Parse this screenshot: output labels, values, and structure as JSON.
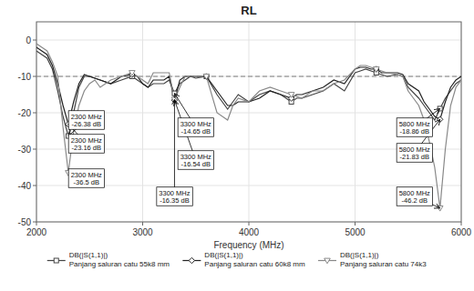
{
  "chart_data": {
    "type": "line",
    "title": "RL",
    "x_label": "Frequency (MHz)",
    "xlim": [
      2000,
      6000
    ],
    "ylim": [
      -50,
      5
    ],
    "xticks": [
      2000,
      3000,
      4000,
      5000,
      6000
    ],
    "yticks": [
      0,
      -10,
      -20,
      -30,
      -40,
      -50
    ],
    "grid": true,
    "legend": "bottom",
    "series": [
      {
        "name": "DB(|S(1,1)|)\nPanjang saluran catu 55k8 mm",
        "color": "#444444",
        "marker": "square",
        "x": [
          2000,
          2050,
          2100,
          2150,
          2200,
          2250,
          2300,
          2350,
          2400,
          2450,
          2500,
          2600,
          2700,
          2800,
          2900,
          2950,
          3000,
          3050,
          3100,
          3200,
          3250,
          3300,
          3350,
          3400,
          3450,
          3500,
          3600,
          3700,
          3800,
          3850,
          3900,
          4000,
          4100,
          4200,
          4300,
          4400,
          4450,
          4500,
          4600,
          4700,
          4800,
          4900,
          5000,
          5050,
          5100,
          5150,
          5200,
          5250,
          5300,
          5400,
          5450,
          5500,
          5600,
          5650,
          5700,
          5750,
          5800,
          5850,
          5900,
          5950,
          6000
        ],
        "values": [
          -3,
          -4,
          -5,
          -8,
          -14,
          -21,
          -26.38,
          -20,
          -13,
          -10,
          -10,
          -11,
          -12,
          -11,
          -10,
          -11,
          -12,
          -13,
          -12,
          -12,
          -11,
          -14.65,
          -12,
          -11,
          -10,
          -10.5,
          -10,
          -15,
          -19,
          -17,
          -15,
          -17,
          -15,
          -14,
          -15,
          -17,
          -16,
          -16,
          -15,
          -14,
          -12,
          -14,
          -9,
          -8.5,
          -8,
          -8.5,
          -9,
          -9.5,
          -10,
          -9.5,
          -10,
          -13,
          -16,
          -18,
          -20,
          -22,
          -18.86,
          -16,
          -14,
          -12,
          -11
        ],
        "marker_x": [
          2300,
          2900,
          3300,
          3600,
          4400,
          5200,
          5800
        ],
        "marker_values": [
          -26.38,
          -10,
          -14.65,
          -10,
          -17,
          -9,
          -18.86
        ]
      },
      {
        "name": "DB(|S(1,1)|)\nPanjang saluran catu 60k8 mm",
        "color": "#222222",
        "marker": "diamond",
        "x": [
          2000,
          2050,
          2100,
          2150,
          2200,
          2250,
          2300,
          2350,
          2400,
          2450,
          2500,
          2600,
          2700,
          2800,
          2900,
          2950,
          3000,
          3050,
          3100,
          3200,
          3250,
          3300,
          3350,
          3400,
          3450,
          3500,
          3600,
          3700,
          3800,
          3850,
          3900,
          4000,
          4100,
          4200,
          4300,
          4400,
          4450,
          4500,
          4600,
          4700,
          4800,
          4900,
          5000,
          5050,
          5100,
          5150,
          5200,
          5250,
          5300,
          5400,
          5450,
          5500,
          5600,
          5650,
          5700,
          5750,
          5800,
          5850,
          5900,
          5950,
          6000
        ],
        "values": [
          -2,
          -3,
          -4,
          -7,
          -12,
          -18,
          -23.16,
          -17,
          -12,
          -9.5,
          -10,
          -11,
          -12,
          -10,
          -9.5,
          -10,
          -12,
          -13,
          -11,
          -11,
          -10,
          -16.54,
          -11,
          -10,
          -10,
          -10,
          -10,
          -14,
          -18,
          -18,
          -17,
          -17,
          -16,
          -14,
          -15,
          -16,
          -15,
          -15,
          -14,
          -13,
          -11,
          -12,
          -8,
          -7.5,
          -7.5,
          -8,
          -8,
          -9,
          -9,
          -9,
          -9.5,
          -12,
          -14,
          -17,
          -19,
          -21,
          -21.83,
          -17,
          -13,
          -11,
          -10
        ],
        "marker_x": [
          2300,
          2900,
          3300,
          3600,
          4400,
          5200,
          5800
        ],
        "marker_values": [
          -23.16,
          -9.5,
          -16.54,
          -10,
          -16,
          -8,
          -21.83
        ]
      },
      {
        "name": "DB(|S(1,1)|)\nPanjang saluran catu 74k3",
        "color": "#888888",
        "marker": "triangle-down",
        "x": [
          2000,
          2050,
          2100,
          2150,
          2200,
          2250,
          2300,
          2350,
          2400,
          2450,
          2500,
          2550,
          2600,
          2700,
          2800,
          2900,
          2950,
          3000,
          3050,
          3100,
          3200,
          3250,
          3300,
          3350,
          3400,
          3450,
          3500,
          3600,
          3700,
          3800,
          3850,
          3900,
          4000,
          4100,
          4200,
          4300,
          4400,
          4500,
          4600,
          4700,
          4800,
          4900,
          5000,
          5050,
          5100,
          5150,
          5200,
          5250,
          5300,
          5400,
          5450,
          5500,
          5550,
          5600,
          5650,
          5700,
          5750,
          5800,
          5850,
          5900,
          5950,
          6000
        ],
        "values": [
          -1,
          -2,
          -3,
          -6,
          -10,
          -24,
          -36.5,
          -25,
          -18,
          -14,
          -12,
          -11,
          -13,
          -11,
          -10,
          -9,
          -10,
          -11,
          -12,
          -9,
          -9,
          -9,
          -16.35,
          -13,
          -10,
          -10,
          -10,
          -10,
          -20,
          -22,
          -18,
          -16,
          -17,
          -14,
          -13,
          -14,
          -15,
          -16,
          -14,
          -14,
          -12,
          -11,
          -8,
          -7,
          -7,
          -7.5,
          -8,
          -8.5,
          -9,
          -9.5,
          -10,
          -14,
          -16,
          -18,
          -22,
          -28,
          -35,
          -46.2,
          -30,
          -18,
          -13,
          -11
        ],
        "marker_x": [
          2300,
          2900,
          3300,
          3600,
          4400,
          5200,
          5800
        ],
        "marker_values": [
          -36.5,
          -9,
          -16.35,
          -10,
          -15,
          -8,
          -46.2
        ]
      }
    ],
    "reference_lines": [
      {
        "y": -10,
        "color": "gray",
        "line_style": "dashed"
      }
    ],
    "annotations": [
      {
        "x": 2300,
        "y": -26.38,
        "text": "2300 MHz\n-26.38 dB",
        "text_x": 2470,
        "text_y": -22
      },
      {
        "x": 2300,
        "y": -23.16,
        "text": "2300 MHz\n-23.16 dB",
        "text_x": 2470,
        "text_y": -28.5
      },
      {
        "x": 2300,
        "y": -36.5,
        "text": "2300 MHz\n-36.5 dB",
        "text_x": 2470,
        "text_y": -38
      },
      {
        "x": 3300,
        "y": -14.65,
        "text": "3300 MHz\n-14.65 dB",
        "text_x": 3500,
        "text_y": -24
      },
      {
        "x": 3300,
        "y": -16.54,
        "text": "3300 MHz\n-16.54 dB",
        "text_x": 3500,
        "text_y": -33
      },
      {
        "x": 3300,
        "y": -16.35,
        "text": "3300 MHz\n-16.35 dB",
        "text_x": 3300,
        "text_y": -43
      },
      {
        "x": 5800,
        "y": -18.86,
        "text": "5800 MHz\n-18.86 dB",
        "text_x": 5560,
        "text_y": -24
      },
      {
        "x": 5800,
        "y": -21.83,
        "text": "5800 MHz\n-21.83 dB",
        "text_x": 5560,
        "text_y": -31
      },
      {
        "x": 5800,
        "y": -46.2,
        "text": "5800 MHz\n-46.2 dB",
        "text_x": 5560,
        "text_y": -43
      }
    ]
  }
}
